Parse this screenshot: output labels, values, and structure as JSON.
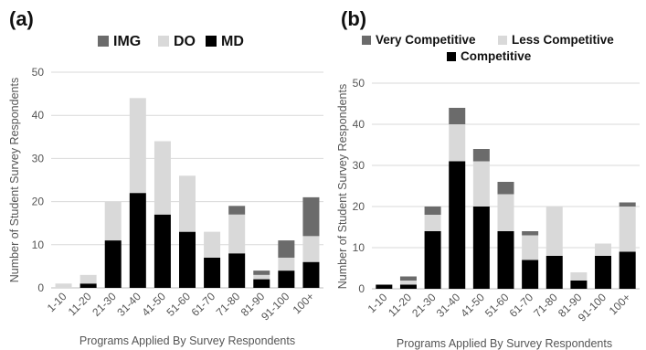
{
  "chart_data": [
    {
      "type": "bar",
      "stacked": true,
      "panel_label": "(a)",
      "categories": [
        "1-10",
        "11-20",
        "21-30",
        "31-40",
        "41-50",
        "51-60",
        "61-70",
        "71-80",
        "81-90",
        "91-100",
        "100+"
      ],
      "series": [
        {
          "name": "MD",
          "color": "#000000",
          "values": [
            0,
            1,
            11,
            22,
            17,
            13,
            7,
            8,
            2,
            4,
            6
          ]
        },
        {
          "name": "DO",
          "color": "#d9d9d9",
          "values": [
            1,
            2,
            9,
            22,
            17,
            13,
            6,
            9,
            1,
            3,
            6
          ]
        },
        {
          "name": "IMG",
          "color": "#6b6b6b",
          "values": [
            0,
            0,
            0,
            0,
            0,
            0,
            0,
            2,
            1,
            4,
            9
          ]
        }
      ],
      "legend_order": [
        "IMG",
        "DO",
        "MD"
      ],
      "legend_position": "top",
      "xlabel": "Programs Applied By Survey Respondents",
      "ylabel": "",
      "ylim": [
        0,
        50
      ],
      "yticks": [
        0,
        10,
        20,
        30,
        40,
        50
      ],
      "grid": true
    },
    {
      "type": "bar",
      "stacked": true,
      "panel_label": "(b)",
      "categories": [
        "1-10",
        "11-20",
        "21-30",
        "31-40",
        "41-50",
        "51-60",
        "61-70",
        "71-80",
        "81-90",
        "91-100",
        "100+"
      ],
      "series": [
        {
          "name": "Competitive",
          "color": "#000000",
          "values": [
            1,
            1,
            14,
            31,
            20,
            14,
            7,
            8,
            2,
            8,
            9
          ]
        },
        {
          "name": "Less Competitive",
          "color": "#d9d9d9",
          "values": [
            0,
            1,
            4,
            9,
            11,
            9,
            6,
            12,
            2,
            3,
            11
          ]
        },
        {
          "name": "Very Competitive",
          "color": "#6b6b6b",
          "values": [
            0,
            1,
            2,
            4,
            3,
            3,
            1,
            0,
            0,
            0,
            1
          ]
        }
      ],
      "legend_order": [
        "Very Competitive",
        "Less Competitive",
        "Competitive"
      ],
      "legend_position": "top",
      "xlabel": "Programs Applied By Survey Respondents",
      "ylabel": "Number of Student Survey Respondents",
      "ylim": [
        0,
        50
      ],
      "yticks": [
        0,
        10,
        20,
        30,
        40,
        50
      ],
      "grid": true
    }
  ],
  "shared_ylabel": "Number of Student Survey Respondents"
}
